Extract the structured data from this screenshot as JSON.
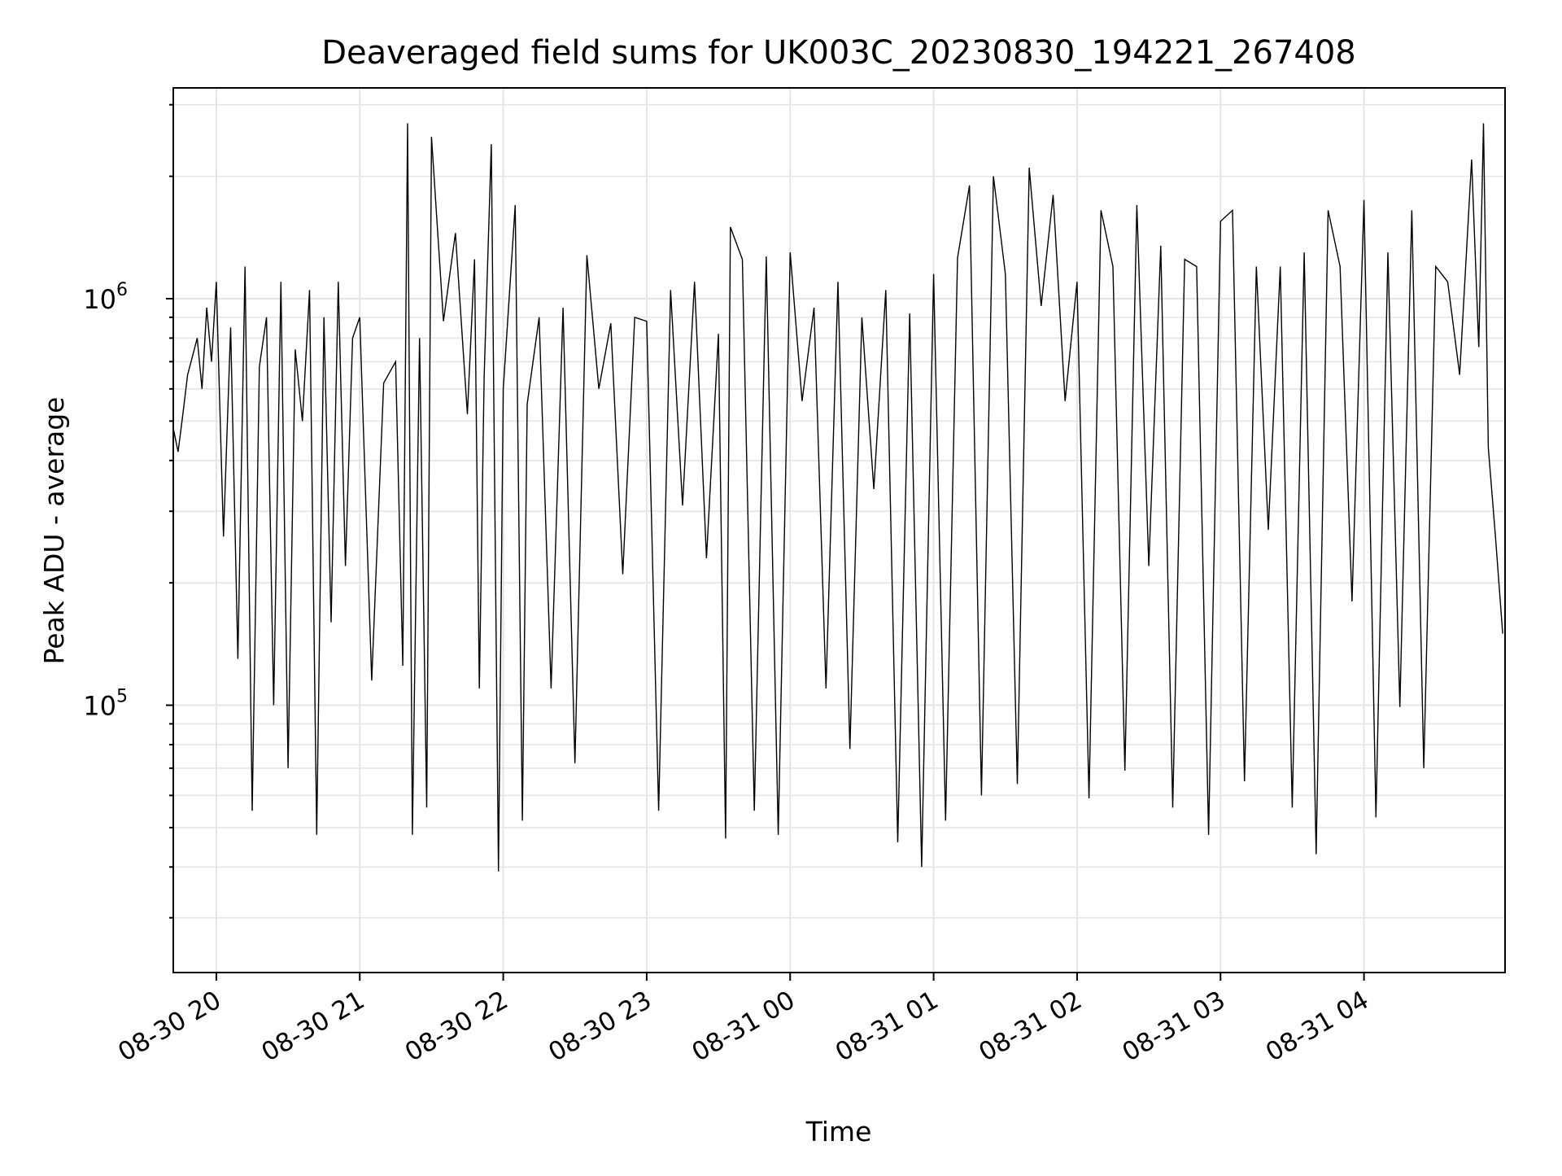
{
  "chart_data": {
    "type": "line",
    "title": "Deaveraged field sums for UK003C_20230830_194221_267408",
    "xlabel": "Time",
    "ylabel": "Peak ADU - average",
    "yscale": "log",
    "ylim": [
      22000,
      3300000
    ],
    "xlim": [
      "2023-08-30 19:42",
      "2023-08-31 04:59"
    ],
    "grid": true,
    "line_color": "#000000",
    "x_ticks": [
      {
        "label": "08-30 20",
        "time": "2023-08-30 20:00"
      },
      {
        "label": "08-30 21",
        "time": "2023-08-30 21:00"
      },
      {
        "label": "08-30 22",
        "time": "2023-08-30 22:00"
      },
      {
        "label": "08-30 23",
        "time": "2023-08-30 23:00"
      },
      {
        "label": "08-31 00",
        "time": "2023-08-31 00:00"
      },
      {
        "label": "08-31 01",
        "time": "2023-08-31 01:00"
      },
      {
        "label": "08-31 02",
        "time": "2023-08-31 02:00"
      },
      {
        "label": "08-31 03",
        "time": "2023-08-31 03:00"
      },
      {
        "label": "08-31 04",
        "time": "2023-08-31 04:00"
      }
    ],
    "y_ticks": [
      {
        "base": "10",
        "exp": "5",
        "value": 100000
      },
      {
        "base": "10",
        "exp": "6",
        "value": 1000000
      }
    ],
    "series": [
      {
        "x": [
          "2023-08-30 19:42",
          "2023-08-30 19:44",
          "2023-08-30 19:46",
          "2023-08-30 19:48",
          "2023-08-30 19:50",
          "2023-08-30 19:52",
          "2023-08-30 19:54",
          "2023-08-30 19:56",
          "2023-08-30 19:58",
          "2023-08-30 20:00",
          "2023-08-30 20:03",
          "2023-08-30 20:06",
          "2023-08-30 20:09",
          "2023-08-30 20:12",
          "2023-08-30 20:15",
          "2023-08-30 20:18",
          "2023-08-30 20:21",
          "2023-08-30 20:24",
          "2023-08-30 20:27",
          "2023-08-30 20:30",
          "2023-08-30 20:33",
          "2023-08-30 20:36",
          "2023-08-30 20:39",
          "2023-08-30 20:42",
          "2023-08-30 20:45",
          "2023-08-30 20:48",
          "2023-08-30 20:51",
          "2023-08-30 20:54",
          "2023-08-30 20:57",
          "2023-08-30 21:00",
          "2023-08-30 21:05",
          "2023-08-30 21:10",
          "2023-08-30 21:15",
          "2023-08-30 21:18",
          "2023-08-30 21:20",
          "2023-08-30 21:22",
          "2023-08-30 21:25",
          "2023-08-30 21:28",
          "2023-08-30 21:30",
          "2023-08-30 21:35",
          "2023-08-30 21:40",
          "2023-08-30 21:45",
          "2023-08-30 21:48",
          "2023-08-30 21:50",
          "2023-08-30 21:52",
          "2023-08-30 21:55",
          "2023-08-30 21:58",
          "2023-08-30 22:00",
          "2023-08-30 22:05",
          "2023-08-30 22:08",
          "2023-08-30 22:10",
          "2023-08-30 22:15",
          "2023-08-30 22:20",
          "2023-08-30 22:25",
          "2023-08-30 22:30",
          "2023-08-30 22:35",
          "2023-08-30 22:40",
          "2023-08-30 22:45",
          "2023-08-30 22:50",
          "2023-08-30 22:55",
          "2023-08-30 23:00",
          "2023-08-30 23:05",
          "2023-08-30 23:10",
          "2023-08-30 23:15",
          "2023-08-30 23:20",
          "2023-08-30 23:25",
          "2023-08-30 23:30",
          "2023-08-30 23:33",
          "2023-08-30 23:35",
          "2023-08-30 23:40",
          "2023-08-30 23:45",
          "2023-08-30 23:50",
          "2023-08-30 23:55",
          "2023-08-31 00:00",
          "2023-08-31 00:05",
          "2023-08-31 00:10",
          "2023-08-31 00:15",
          "2023-08-31 00:20",
          "2023-08-31 00:25",
          "2023-08-31 00:30",
          "2023-08-31 00:35",
          "2023-08-31 00:40",
          "2023-08-31 00:45",
          "2023-08-31 00:50",
          "2023-08-31 00:55",
          "2023-08-31 01:00",
          "2023-08-31 01:05",
          "2023-08-31 01:10",
          "2023-08-31 01:15",
          "2023-08-31 01:20",
          "2023-08-31 01:25",
          "2023-08-31 01:30",
          "2023-08-31 01:35",
          "2023-08-31 01:40",
          "2023-08-31 01:45",
          "2023-08-31 01:50",
          "2023-08-31 01:55",
          "2023-08-31 02:00",
          "2023-08-31 02:05",
          "2023-08-31 02:10",
          "2023-08-31 02:15",
          "2023-08-31 02:20",
          "2023-08-31 02:25",
          "2023-08-31 02:30",
          "2023-08-31 02:35",
          "2023-08-31 02:40",
          "2023-08-31 02:45",
          "2023-08-31 02:50",
          "2023-08-31 02:55",
          "2023-08-31 03:00",
          "2023-08-31 03:05",
          "2023-08-31 03:10",
          "2023-08-31 03:15",
          "2023-08-31 03:20",
          "2023-08-31 03:25",
          "2023-08-31 03:30",
          "2023-08-31 03:35",
          "2023-08-31 03:40",
          "2023-08-31 03:45",
          "2023-08-31 03:50",
          "2023-08-31 03:55",
          "2023-08-31 04:00",
          "2023-08-31 04:05",
          "2023-08-31 04:10",
          "2023-08-31 04:15",
          "2023-08-31 04:20",
          "2023-08-31 04:25",
          "2023-08-31 04:30",
          "2023-08-31 04:35",
          "2023-08-31 04:40",
          "2023-08-31 04:45",
          "2023-08-31 04:48",
          "2023-08-31 04:50",
          "2023-08-31 04:52",
          "2023-08-31 04:55",
          "2023-08-31 04:58"
        ],
        "y": [
          480000,
          420000,
          520000,
          650000,
          720000,
          800000,
          600000,
          950000,
          700000,
          1100000,
          260000,
          850000,
          130000,
          1200000,
          55000,
          680000,
          900000,
          100000,
          1100000,
          70000,
          750000,
          500000,
          1050000,
          48000,
          900000,
          160000,
          1100000,
          220000,
          800000,
          900000,
          115000,
          620000,
          700000,
          125000,
          2700000,
          48000,
          800000,
          56000,
          2500000,
          880000,
          1450000,
          520000,
          1250000,
          110000,
          640000,
          2400000,
          39000,
          600000,
          1700000,
          52000,
          550000,
          900000,
          110000,
          950000,
          72000,
          1280000,
          600000,
          870000,
          210000,
          900000,
          880000,
          55000,
          1050000,
          310000,
          1100000,
          230000,
          820000,
          47000,
          1500000,
          1250000,
          55000,
          1270000,
          48000,
          1300000,
          560000,
          950000,
          110000,
          1100000,
          78000,
          900000,
          340000,
          1050000,
          46000,
          920000,
          40000,
          1150000,
          52000,
          1260000,
          1900000,
          60000,
          2000000,
          1150000,
          64000,
          2100000,
          960000,
          1800000,
          560000,
          1100000,
          59000,
          1650000,
          1200000,
          69000,
          1700000,
          220000,
          1350000,
          56000,
          1250000,
          1200000,
          48000,
          1550000,
          1650000,
          65000,
          1200000,
          270000,
          1200000,
          56000,
          1300000,
          43000,
          1650000,
          1200000,
          180000,
          1750000,
          53000,
          1300000,
          99000,
          1650000,
          70000,
          1200000,
          1100000,
          650000,
          2200000,
          760000,
          2700000,
          430000,
          260000,
          150000
        ]
      }
    ]
  }
}
